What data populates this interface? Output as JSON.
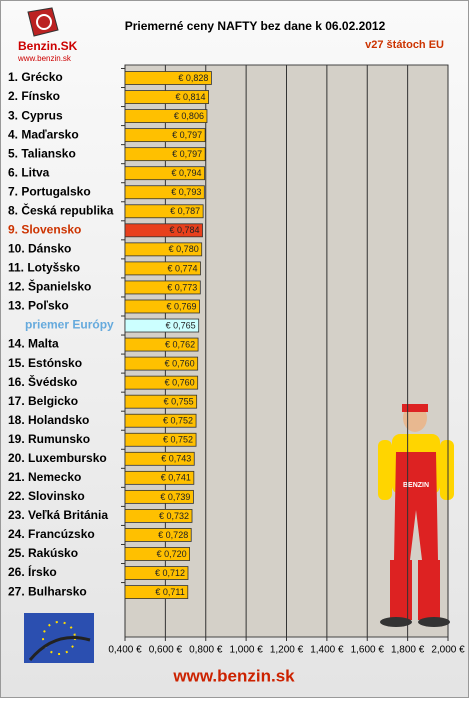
{
  "chart_data": {
    "type": "bar",
    "orientation": "horizontal",
    "title": "Priemerné ceny NAFTY bez dane k 06.02.2012",
    "subtitle": "v27 štátoch EU",
    "brand": "Benzin.SK",
    "brand_url": "www.benzin.sk",
    "footer": "www.benzin.sk",
    "categories": [
      "1. Grécko",
      "2. Fínsko",
      "3. Cyprus",
      "4. Maďarsko",
      "5. Taliansko",
      "6. Litva",
      "7. Portugalsko",
      "8. Česká republika",
      "9. Slovensko",
      "10. Dánsko",
      "11. Lotyšsko",
      "12. Španielsko",
      "13. Poľsko",
      "priemer Európy",
      "14. Malta",
      "15. Estónsko",
      "16. Švédsko",
      "17. Belgicko",
      "18. Holandsko",
      "19. Rumunsko",
      "20. Luxembursko",
      "21. Nemecko",
      "22. Slovinsko",
      "23. Veľká Británia",
      "24. Francúzsko",
      "25. Rakúsko",
      "26. Írsko",
      "27. Bulharsko"
    ],
    "values": [
      0.828,
      0.814,
      0.806,
      0.797,
      0.797,
      0.794,
      0.793,
      0.787,
      0.784,
      0.78,
      0.774,
      0.773,
      0.769,
      0.765,
      0.762,
      0.76,
      0.76,
      0.755,
      0.752,
      0.752,
      0.743,
      0.741,
      0.739,
      0.732,
      0.728,
      0.72,
      0.712,
      0.711
    ],
    "value_labels": [
      "€ 0,828",
      "€ 0,814",
      "€ 0,806",
      "€ 0,797",
      "€ 0,797",
      "€ 0,794",
      "€ 0,793",
      "€ 0,787",
      "€ 0,784",
      "€ 0,780",
      "€ 0,774",
      "€ 0,773",
      "€ 0,769",
      "€ 0,765",
      "€ 0,762",
      "€ 0,760",
      "€ 0,760",
      "€ 0,755",
      "€ 0,752",
      "€ 0,752",
      "€ 0,743",
      "€ 0,741",
      "€ 0,739",
      "€ 0,732",
      "€ 0,728",
      "€ 0,720",
      "€ 0,712",
      "€ 0,711"
    ],
    "colors": [
      "#ffc000",
      "#ffc000",
      "#ffc000",
      "#ffc000",
      "#ffc000",
      "#ffc000",
      "#ffc000",
      "#ffc000",
      "#e8401c",
      "#ffc000",
      "#ffc000",
      "#ffc000",
      "#ffc000",
      "#ccffff",
      "#ffc000",
      "#ffc000",
      "#ffc000",
      "#ffc000",
      "#ffc000",
      "#ffc000",
      "#ffc000",
      "#ffc000",
      "#ffc000",
      "#ffc000",
      "#ffc000",
      "#ffc000",
      "#ffc000",
      "#ffc000"
    ],
    "label_colors": [
      "#000",
      "#000",
      "#000",
      "#000",
      "#000",
      "#000",
      "#000",
      "#000",
      "#cc3300",
      "#000",
      "#000",
      "#000",
      "#000",
      "#66aadd",
      "#000",
      "#000",
      "#000",
      "#000",
      "#000",
      "#000",
      "#000",
      "#000",
      "#000",
      "#000",
      "#000",
      "#000",
      "#000",
      "#000"
    ],
    "xlim": [
      0.4,
      2.0
    ],
    "xticks": [
      {
        "value": 0.4,
        "label": "0,400 €"
      },
      {
        "value": 0.6,
        "label": "0,600 €"
      },
      {
        "value": 0.8,
        "label": "0,800 €"
      },
      {
        "value": 1.0,
        "label": "1,000 €"
      },
      {
        "value": 1.2,
        "label": "1,200 €"
      },
      {
        "value": 1.4,
        "label": "1,400 €"
      },
      {
        "value": 1.6,
        "label": "1,600 €"
      },
      {
        "value": 1.8,
        "label": "1,800 €"
      },
      {
        "value": 2.0,
        "label": "2,000 €"
      }
    ],
    "grid": true
  }
}
